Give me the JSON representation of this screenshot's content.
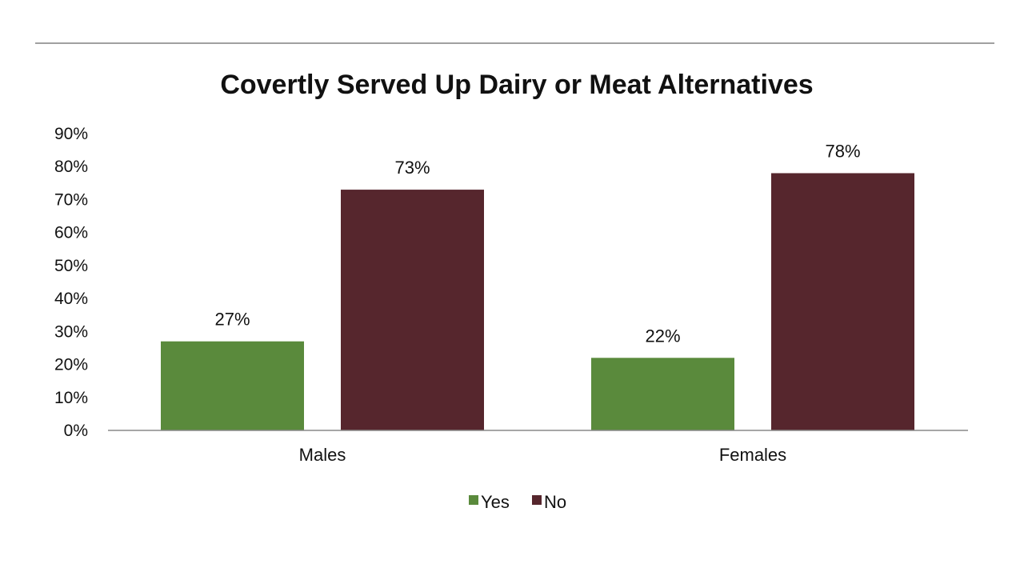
{
  "chart_data": {
    "type": "bar",
    "title": "Covertly Served Up Dairy or Meat Alternatives",
    "categories": [
      "Males",
      "Females"
    ],
    "series": [
      {
        "name": "Yes",
        "values": [
          27,
          22
        ],
        "labels": [
          "27%",
          "22%"
        ],
        "color": "#5a8a3c"
      },
      {
        "name": "No",
        "values": [
          73,
          78
        ],
        "labels": [
          "73%",
          "78%"
        ],
        "color": "#56262d"
      }
    ],
    "ylim": [
      0,
      90
    ],
    "yticks": [
      0,
      10,
      20,
      30,
      40,
      50,
      60,
      70,
      80,
      90
    ],
    "ytick_labels": [
      "0%",
      "10%",
      "20%",
      "30%",
      "40%",
      "50%",
      "60%",
      "70%",
      "80%",
      "90%"
    ],
    "xlabel": "",
    "ylabel": "",
    "grid": false,
    "legend": "bottom-center",
    "colors": {
      "divider": "#a0a0a0",
      "axis": "#888888"
    }
  }
}
